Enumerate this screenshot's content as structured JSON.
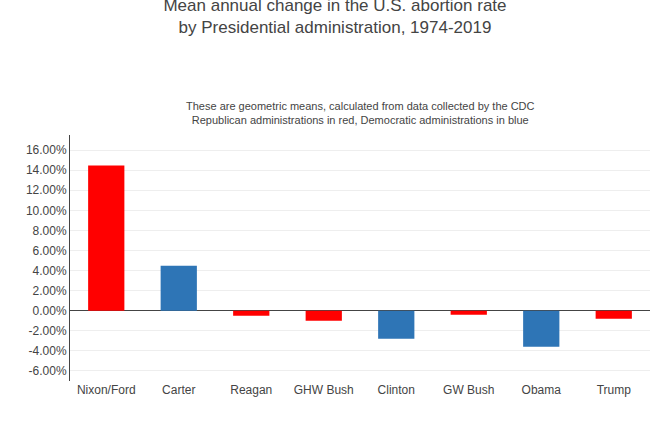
{
  "chart_data": {
    "type": "bar",
    "title": [
      "Mean annual change in the U.S. abortion rate",
      "by Presidential administration, 1974-2019"
    ],
    "subtitle": [
      "These are geometric means, calculated from data collected by the CDC",
      "Republican administrations in red, Democratic administrations in blue"
    ],
    "categories": [
      "Nixon/Ford",
      "Carter",
      "Reagan",
      "GHW Bush",
      "Clinton",
      "GW Bush",
      "Obama",
      "Trump"
    ],
    "values": [
      0.1447,
      0.0449,
      -0.0049,
      -0.0099,
      -0.0278,
      -0.004,
      -0.036,
      -0.0079
    ],
    "colors": [
      "#FF0000",
      "#2E75B6",
      "#FF0000",
      "#FF0000",
      "#2E75B6",
      "#FF0000",
      "#2E75B6",
      "#FF0000"
    ],
    "ylim": [
      -0.07,
      0.175
    ],
    "yticks": [
      {
        "value": -0.06,
        "label": "-6.00%"
      },
      {
        "value": -0.04,
        "label": "-4.00%"
      },
      {
        "value": -0.02,
        "label": "-2.00%"
      },
      {
        "value": 0.0,
        "label": "0.00%"
      },
      {
        "value": 0.02,
        "label": "2.00%"
      },
      {
        "value": 0.04,
        "label": "4.00%"
      },
      {
        "value": 0.06,
        "label": "6.00%"
      },
      {
        "value": 0.08,
        "label": "8.00%"
      },
      {
        "value": 0.1,
        "label": "10.00%"
      },
      {
        "value": 0.12,
        "label": "12.00%"
      },
      {
        "value": 0.14,
        "label": "14.00%"
      },
      {
        "value": 0.16,
        "label": "16.00%"
      }
    ],
    "grid": true
  }
}
